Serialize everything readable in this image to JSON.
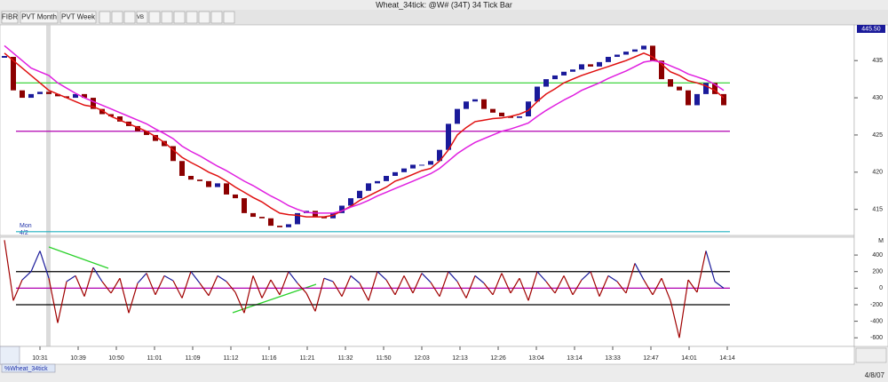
{
  "window": {
    "title": "Wheat_34tick: @W# (34T) 34 Tick Bar"
  },
  "toolbar": {
    "buttons": [
      "FIBR",
      "PVT Month",
      "PVT Week"
    ],
    "vb": "VB"
  },
  "chart_data": [
    {
      "type": "candlestick",
      "last_price_label": "445.50",
      "session_label": "Mon",
      "session_date": "4/2",
      "up_color": "#1a1a9a",
      "down_color": "#8b0000",
      "close": [
        435.5,
        431,
        430,
        430.5,
        430.8,
        430.5,
        430.2,
        430,
        430.5,
        430,
        428.5,
        427.8,
        427.5,
        426.8,
        426.2,
        425.5,
        425,
        424.2,
        423.5,
        421.5,
        419.5,
        419,
        418.8,
        418,
        418.5,
        417,
        416.5,
        414.5,
        414,
        413.8,
        412.8,
        412.6,
        413,
        414.5,
        414.8,
        414,
        413.8,
        414.5,
        415.5,
        416.5,
        417.5,
        418.5,
        418.8,
        419.5,
        420,
        420.5,
        421,
        421,
        421.5,
        423,
        426.5,
        428.5,
        429.5,
        429.8,
        428.5,
        428,
        427.5,
        427.3,
        427.5,
        429.5,
        431.5,
        432.5,
        433,
        433.5,
        433.8,
        434.5,
        434.2,
        434.8,
        435.5,
        435.8,
        436.2,
        436.5,
        437,
        435,
        432.5,
        431.5,
        431,
        429,
        430.5,
        432,
        430.5,
        429
      ],
      "overlays": [
        {
          "color": "#e01010",
          "values": [
            436,
            435,
            434,
            433,
            432,
            431,
            430.5,
            430,
            429.5,
            429,
            428.8,
            428.3,
            427.5,
            427,
            426.5,
            426,
            425.5,
            424.8,
            424,
            423,
            422,
            421.3,
            420.7,
            420,
            419.5,
            418.8,
            418,
            417.3,
            416.6,
            416,
            415.2,
            414.5,
            414.3,
            414.2,
            414,
            414,
            414,
            414.2,
            414.8,
            415.4,
            416.2,
            416.8,
            417.4,
            418,
            418.8,
            419.2,
            419.7,
            420.2,
            420.5,
            421.5,
            423,
            425,
            426,
            426.8,
            427,
            427.2,
            427.3,
            427.5,
            427.8,
            428.3,
            429.5,
            430.5,
            431.2,
            432,
            432.5,
            433,
            433.4,
            433.8,
            434.2,
            434.6,
            435,
            435.5,
            436,
            435.5,
            434.5,
            433.5,
            433,
            432.3,
            432,
            431.6,
            431,
            430
          ]
        },
        {
          "color": "#e020e0",
          "values": [
            437,
            436,
            435,
            434,
            433.5,
            433,
            432,
            431.3,
            430.6,
            430,
            429.5,
            429,
            428.5,
            428,
            427.5,
            427,
            426.5,
            425.8,
            425.2,
            424.5,
            423.5,
            422.8,
            422.2,
            421.5,
            420.8,
            420.2,
            419.5,
            418.8,
            418.2,
            417.5,
            416.8,
            416.2,
            415.5,
            415,
            414.6,
            414.5,
            414.5,
            414.5,
            414.8,
            415.3,
            415.7,
            416.2,
            416.8,
            417.3,
            417.8,
            418.3,
            418.8,
            419.3,
            419.8,
            420.5,
            421.5,
            422.5,
            423.3,
            424,
            424.5,
            425,
            425.5,
            425.8,
            426.2,
            426.6,
            427.5,
            428.3,
            429,
            429.7,
            430.3,
            431,
            431.5,
            432,
            432.6,
            433.1,
            433.6,
            434.2,
            434.8,
            435,
            434.8,
            434.3,
            433.8,
            433.2,
            432.8,
            432.4,
            431.8,
            431
          ]
        }
      ],
      "levels": [
        {
          "value": 432,
          "color": "#2ad12a"
        },
        {
          "value": 425.5,
          "color": "#b000b0"
        },
        {
          "value": 412,
          "color": "#20b0c0"
        }
      ],
      "ylim": [
        411.5,
        439.8
      ],
      "yticks": [
        415,
        420,
        425,
        430,
        435
      ]
    },
    {
      "type": "line",
      "axis_tag": "M",
      "pos_color": "#1a1a9a",
      "neg_color": "#a00000",
      "values": [
        580,
        -150,
        100,
        200,
        450,
        120,
        -420,
        80,
        150,
        -100,
        250,
        80,
        -60,
        120,
        -300,
        60,
        180,
        -80,
        150,
        90,
        -120,
        200,
        60,
        -90,
        150,
        80,
        -50,
        -300,
        150,
        -120,
        100,
        -80,
        200,
        60,
        -60,
        -280,
        120,
        80,
        -100,
        150,
        60,
        -150,
        200,
        100,
        -80,
        150,
        -60,
        180,
        70,
        -100,
        200,
        80,
        -120,
        150,
        60,
        -80,
        180,
        -60,
        120,
        -150,
        200,
        80,
        -60,
        150,
        -80,
        100,
        200,
        -100,
        150,
        80,
        -60,
        300,
        100,
        -80,
        120,
        -150,
        -600,
        100,
        -50,
        450,
        80,
        0
      ],
      "levels": [
        {
          "value": 200,
          "color": "#000000"
        },
        {
          "value": 0,
          "color": "#b000b0"
        },
        {
          "value": -200,
          "color": "#000000"
        }
      ],
      "ylim": [
        -705,
        605
      ],
      "yticks": [
        400,
        200,
        0,
        -200,
        -400,
        -600
      ]
    }
  ],
  "time_labels": [
    "10:31",
    "10:39",
    "10:50",
    "11:01",
    "11:09",
    "11:12",
    "11:16",
    "11:21",
    "11:32",
    "11:50",
    "12:03",
    "12:13",
    "12:26",
    "13:04",
    "13:14",
    "13:33",
    "12:47",
    "14:01",
    "14:14"
  ],
  "footer": {
    "tab": "%Wheat_34tick",
    "date": "4/8/07"
  }
}
